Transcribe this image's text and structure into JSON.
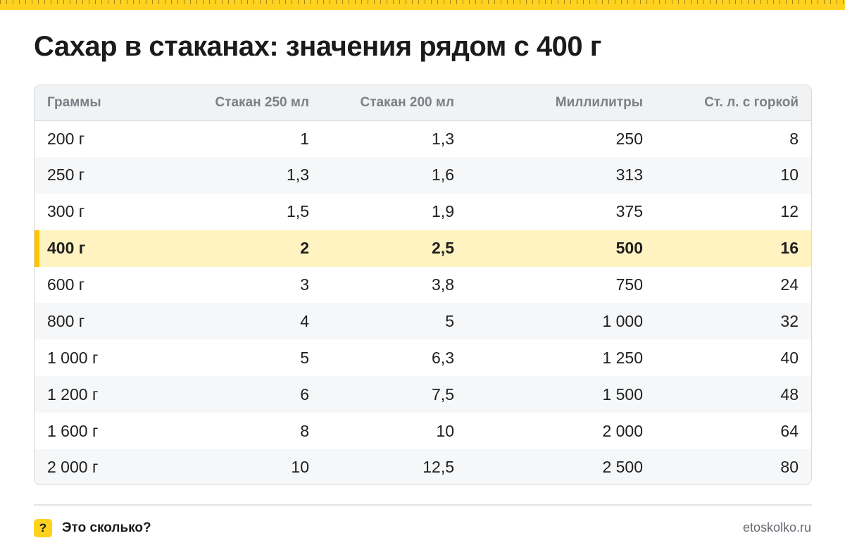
{
  "title": "Сахар в стаканах: значения рядом с 400 г",
  "table": {
    "headers": [
      "Граммы",
      "Стакан 250 мл",
      "Стакан 200 мл",
      "Миллилитры",
      "Ст. л. с горкой"
    ],
    "highlight_row": 3,
    "rows": [
      [
        "200 г",
        "1",
        "1,3",
        "250",
        "8"
      ],
      [
        "250 г",
        "1,3",
        "1,6",
        "313",
        "10"
      ],
      [
        "300 г",
        "1,5",
        "1,9",
        "375",
        "12"
      ],
      [
        "400 г",
        "2",
        "2,5",
        "500",
        "16"
      ],
      [
        "600 г",
        "3",
        "3,8",
        "750",
        "24"
      ],
      [
        "800 г",
        "4",
        "5",
        "1 000",
        "32"
      ],
      [
        "1 000 г",
        "5",
        "6,3",
        "1 250",
        "40"
      ],
      [
        "1 200 г",
        "6",
        "7,5",
        "1 500",
        "48"
      ],
      [
        "1 600 г",
        "8",
        "10",
        "2 000",
        "64"
      ],
      [
        "2 000 г",
        "10",
        "12,5",
        "2 500",
        "80"
      ]
    ]
  },
  "footer": {
    "badge_icon": "question-mark-icon",
    "badge_glyph": "?",
    "brand": "Это сколько?",
    "site": "etoskolko.ru"
  },
  "colors": {
    "accent": "#ffd21f",
    "highlight_row": "#fff3c2",
    "highlight_marker": "#ffc400"
  }
}
